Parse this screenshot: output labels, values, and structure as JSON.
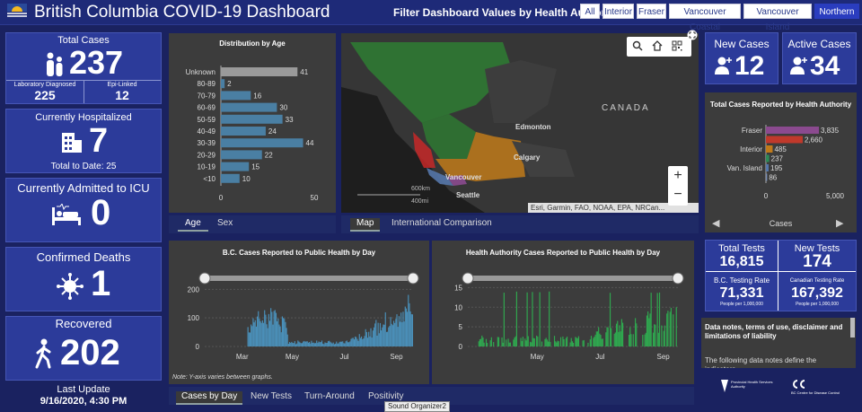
{
  "header": {
    "title": "British Columbia COVID-19 Dashboard",
    "filter_label": "Filter Dashboard Values by Health Authority:",
    "filters": [
      "All",
      "Interior",
      "Fraser",
      "Vancouver Coastal",
      "Vancouver Island",
      "Northern"
    ],
    "selected_filter": "Northern"
  },
  "total_cases": {
    "label": "Total Cases",
    "value": "237",
    "lab_label": "Laboratory Diagnosed",
    "lab_value": "225",
    "epi_label": "Epi-Linked",
    "epi_value": "12"
  },
  "hospitalized": {
    "label": "Currently Hospitalized",
    "value": "7",
    "total_to_date": "Total to Date: 25"
  },
  "icu": {
    "label": "Currently Admitted to ICU",
    "value": "0"
  },
  "deaths": {
    "label": "Confirmed Deaths",
    "value": "1"
  },
  "recovered": {
    "label": "Recovered",
    "value": "202"
  },
  "last_update": {
    "label": "Last Update",
    "value": "9/16/2020, 4:30 PM"
  },
  "age_chart": {
    "title": "Distribution by Age",
    "tabs": [
      "Age",
      "Sex"
    ],
    "active_tab": "Age",
    "chart_data": {
      "type": "bar",
      "categories": [
        "Unknown",
        "80-89",
        "70-79",
        "60-69",
        "50-59",
        "40-49",
        "30-39",
        "20-29",
        "10-19",
        "<10"
      ],
      "values": [
        41,
        2,
        16,
        30,
        33,
        24,
        44,
        22,
        15,
        10
      ],
      "xlim": [
        0,
        50
      ],
      "xticks": [
        "0",
        "50"
      ]
    }
  },
  "map": {
    "labels": {
      "canada": "CANADA",
      "edmonton": "Edmonton",
      "calgary": "Calgary",
      "vancouver": "Vancouver",
      "seattle": "Seattle",
      "scale_km": "600km",
      "scale_mi": "400mi"
    },
    "attribution": "Esri, Garmin, FAO, NOAA, EPA, NRCan...",
    "tabs": [
      "Map",
      "International Comparison"
    ],
    "active_tab": "Map"
  },
  "new_cases": {
    "label": "New Cases",
    "value": "12"
  },
  "active_cases": {
    "label": "Active Cases",
    "value": "34"
  },
  "ha_chart": {
    "title": "Total Cases Reported by Health Authority",
    "footer": "Cases",
    "chart_data": {
      "type": "bar",
      "categories": [
        "Fraser",
        "",
        "Interior",
        "",
        "Van. Island",
        ""
      ],
      "values": [
        3835,
        2660,
        485,
        237,
        195,
        86
      ],
      "value_labels": [
        "3,835",
        "2,660",
        "485",
        "237",
        "195",
        "86"
      ],
      "colors": [
        "#8b4a8f",
        "#c0392b",
        "#c07a1a",
        "#2e8b57",
        "#5577aa",
        "#7a8fb5"
      ],
      "xlim": [
        0,
        5000
      ],
      "xticks": [
        "0",
        "5,000"
      ]
    }
  },
  "bc_daily": {
    "title": "B.C. Cases Reported to Public Health by Day",
    "note": "Note: Y-axis varies between graphs.",
    "chart_data": {
      "type": "bar",
      "yticks": [
        "0",
        "100",
        "200"
      ],
      "xticks": [
        "Mar",
        "May",
        "Jul",
        "Sep"
      ],
      "ylim": [
        0,
        220
      ]
    }
  },
  "ha_daily": {
    "title": "Health Authority Cases Reported to Public Health by Day",
    "chart_data": {
      "type": "bar",
      "yticks": [
        "0",
        "5",
        "10",
        "15"
      ],
      "xticks": [
        "May",
        "Jul",
        "Sep"
      ],
      "ylim": [
        0,
        16
      ]
    }
  },
  "bottom_tabs": [
    "Cases by Day",
    "New Tests",
    "Turn-Around",
    "Positivity"
  ],
  "bottom_active": "Cases by Day",
  "tooltip": "Sound Organizer2",
  "tests": {
    "total_label": "Total Tests",
    "total_value": "16,815",
    "new_label": "New Tests",
    "new_value": "174",
    "bc_rate_label": "B.C. Testing Rate",
    "bc_rate_value": "71,331",
    "bc_rate_unit": "People per 1,000,000",
    "ca_rate_label": "Canadian Testing Rate",
    "ca_rate_value": "167,392",
    "ca_rate_unit": "People per 1,000,000"
  },
  "notes": {
    "title": "Data notes, terms of use, disclaimer and limitations of liability",
    "body": "The following data notes define the indicators"
  },
  "logos": {
    "phsa": "Provincial Health Services Authority",
    "bccdc": "BC Centre for Disease Control"
  },
  "colors": {
    "bg": "#1a2260",
    "card": "#2c3b9a",
    "bar": "#4a7fa3",
    "unknown_bar": "#9a9a9a",
    "green": "#2fa84f"
  }
}
